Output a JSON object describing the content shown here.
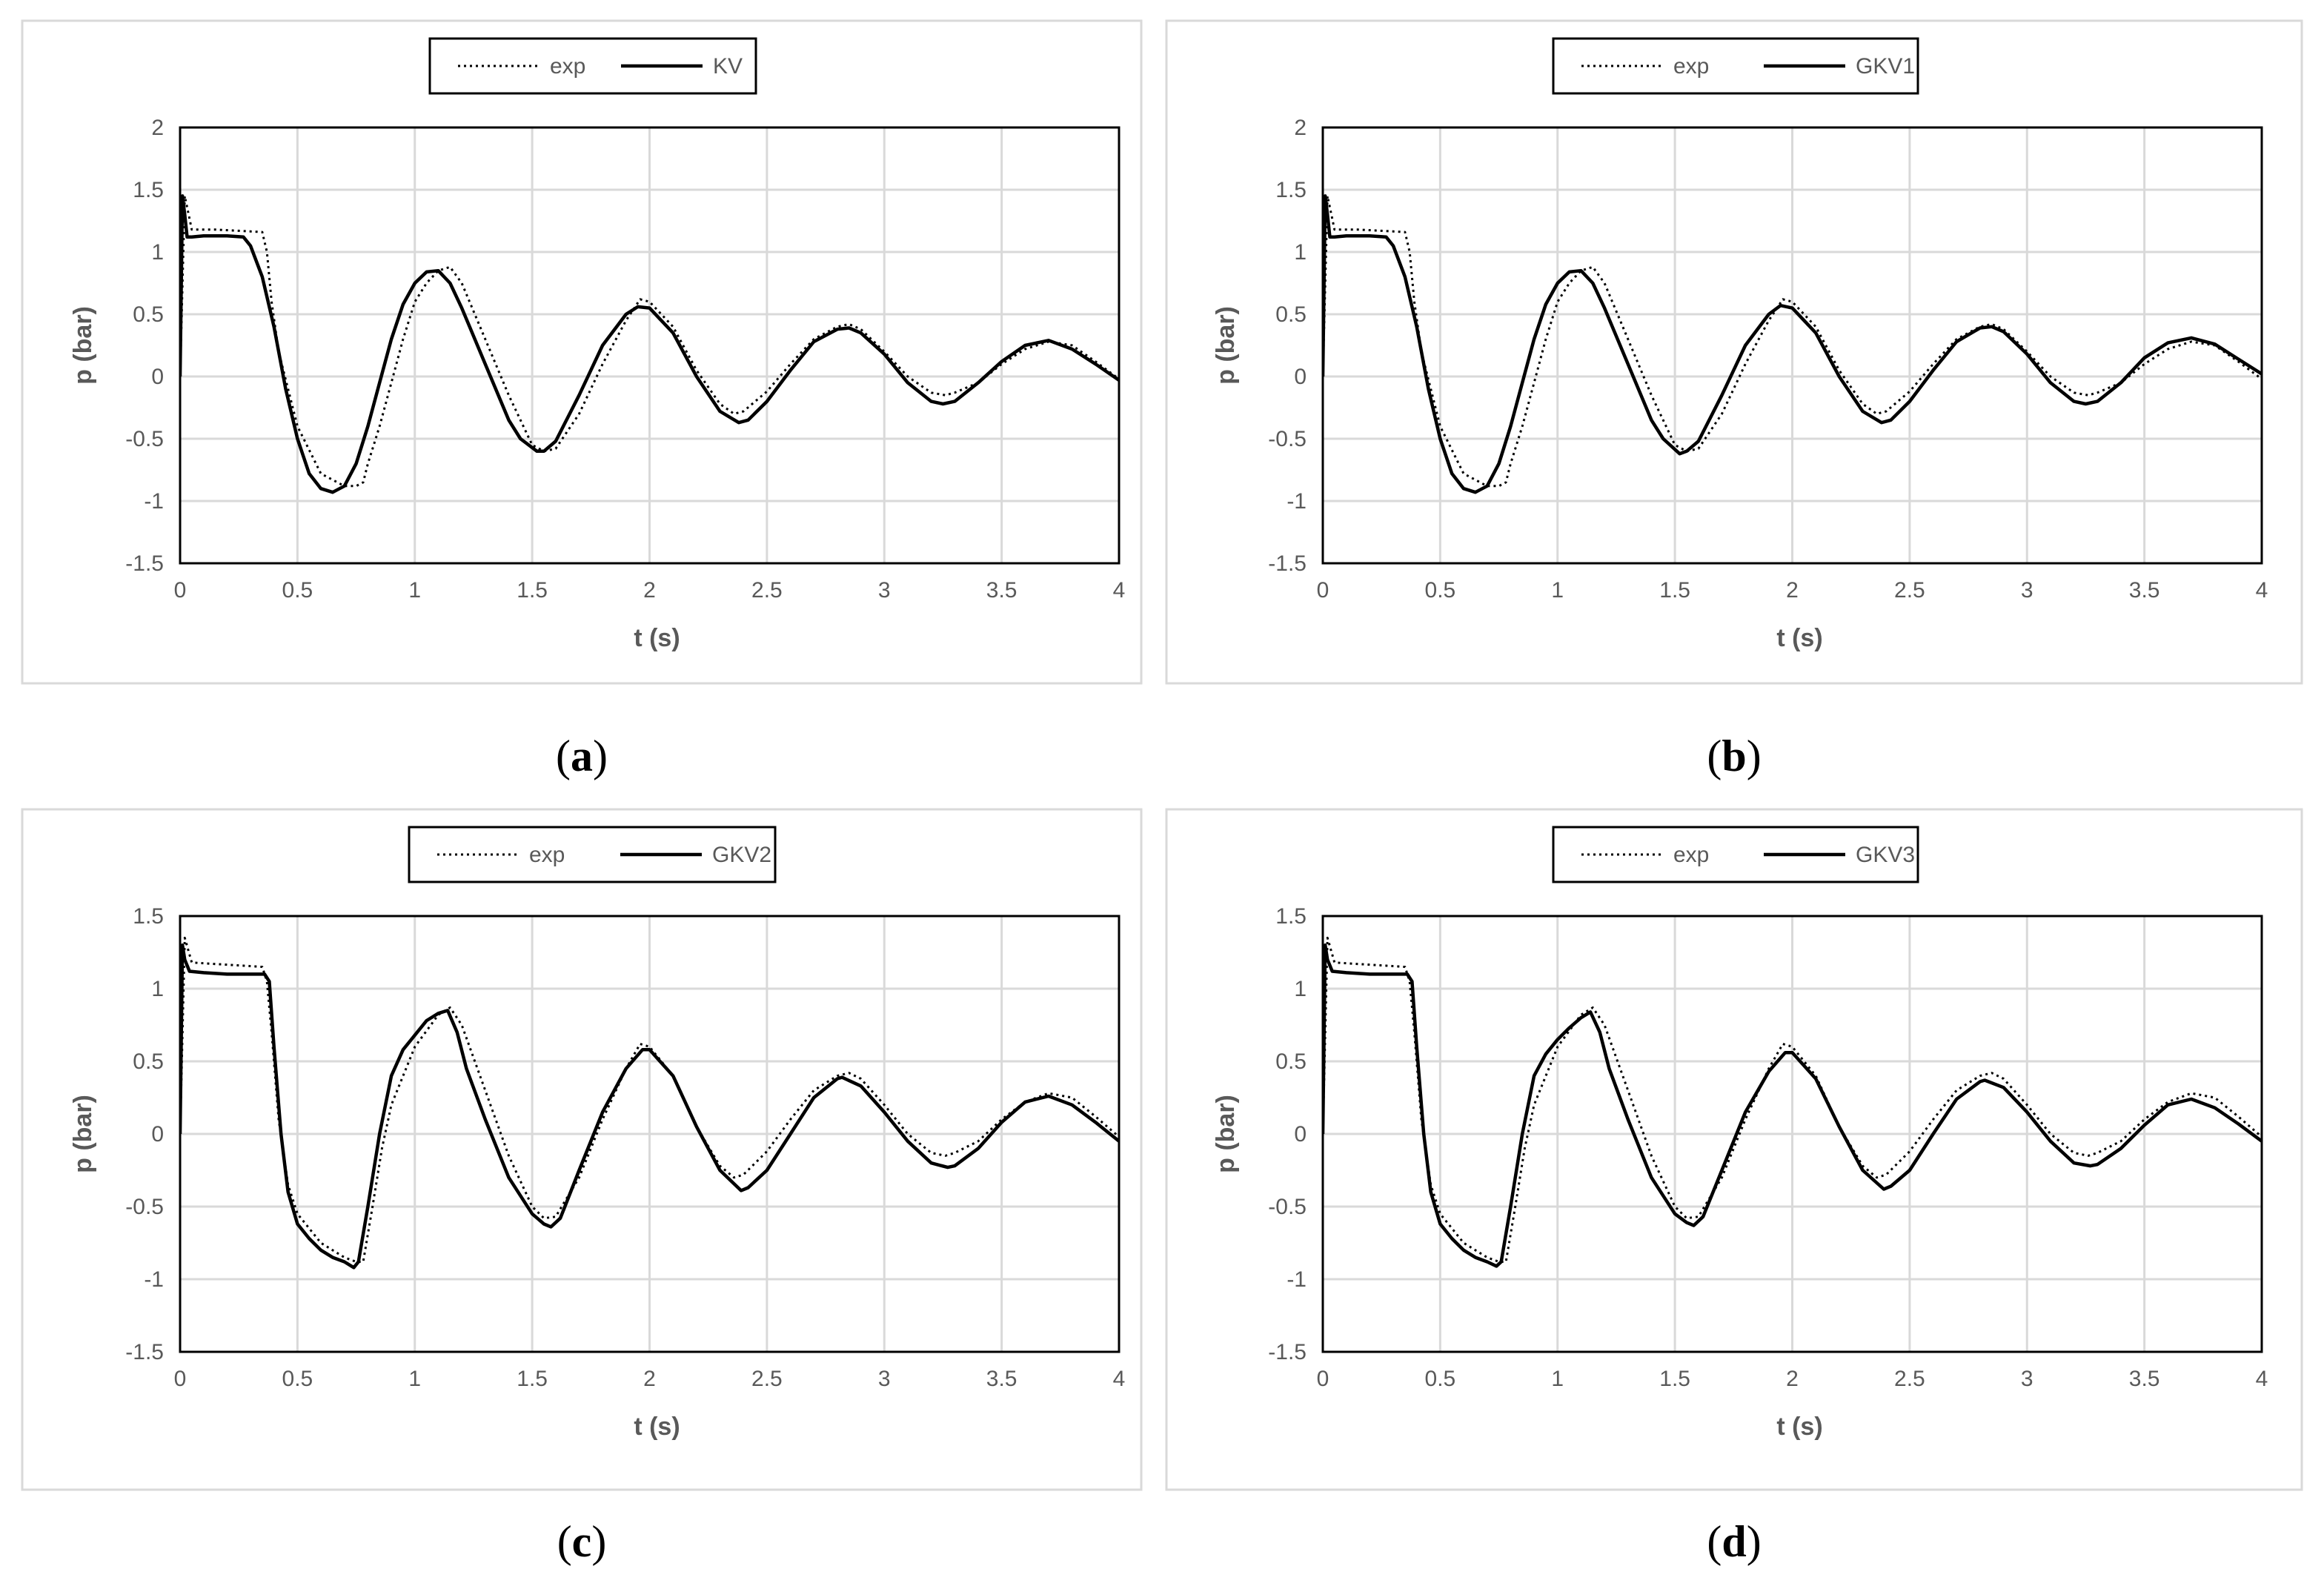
{
  "chart_data": [
    {
      "type": "line",
      "panel_label": "(a)",
      "xlabel": "t (s)",
      "ylabel": "p (bar)",
      "xlim": [
        0,
        4
      ],
      "ylim": [
        -1.5,
        2
      ],
      "x_ticks": [
        "0",
        "0.5",
        "1",
        "1.5",
        "2",
        "2.5",
        "3",
        "3.5",
        "4"
      ],
      "y_ticks": [
        "2",
        "1.5",
        "1",
        "0.5",
        "0",
        "-0.5",
        "-1",
        "-1.5"
      ],
      "grid": true,
      "legend": "top-center",
      "series": [
        {
          "name": "exp",
          "style": "dotted",
          "x": [
            0,
            0.02,
            0.05,
            0.15,
            0.25,
            0.35,
            0.37,
            0.39,
            0.42,
            0.5,
            0.6,
            0.7,
            0.75,
            0.78,
            0.8,
            0.85,
            0.9,
            0.95,
            1.0,
            1.05,
            1.1,
            1.15,
            1.2,
            1.3,
            1.4,
            1.5,
            1.55,
            1.6,
            1.7,
            1.8,
            1.9,
            1.96,
            2.0,
            2.1,
            2.2,
            2.3,
            2.36,
            2.4,
            2.5,
            2.6,
            2.7,
            2.8,
            2.85,
            2.9,
            3.0,
            3.1,
            3.2,
            3.26,
            3.3,
            3.4,
            3.5,
            3.6,
            3.7,
            3.8,
            3.9,
            4.0
          ],
          "y": [
            0,
            1.45,
            1.18,
            1.18,
            1.17,
            1.16,
            1.0,
            0.6,
            0.2,
            -0.4,
            -0.78,
            -0.88,
            -0.88,
            -0.85,
            -0.7,
            -0.4,
            -0.05,
            0.3,
            0.6,
            0.75,
            0.85,
            0.88,
            0.75,
            0.3,
            -0.15,
            -0.55,
            -0.6,
            -0.58,
            -0.3,
            0.1,
            0.45,
            0.62,
            0.6,
            0.4,
            0.05,
            -0.22,
            -0.3,
            -0.28,
            -0.12,
            0.1,
            0.3,
            0.4,
            0.42,
            0.38,
            0.2,
            0.0,
            -0.13,
            -0.15,
            -0.13,
            -0.05,
            0.1,
            0.22,
            0.28,
            0.25,
            0.12,
            -0.02
          ]
        },
        {
          "name": "KV",
          "style": "solid",
          "x": [
            0,
            0.01,
            0.02,
            0.03,
            0.05,
            0.1,
            0.2,
            0.27,
            0.3,
            0.35,
            0.4,
            0.45,
            0.5,
            0.55,
            0.6,
            0.65,
            0.7,
            0.75,
            0.8,
            0.85,
            0.9,
            0.95,
            1.0,
            1.05,
            1.1,
            1.15,
            1.2,
            1.3,
            1.4,
            1.45,
            1.52,
            1.55,
            1.6,
            1.7,
            1.8,
            1.9,
            1.95,
            2.0,
            2.1,
            2.2,
            2.3,
            2.38,
            2.42,
            2.5,
            2.6,
            2.7,
            2.8,
            2.85,
            2.9,
            3.0,
            3.1,
            3.2,
            3.25,
            3.3,
            3.4,
            3.5,
            3.6,
            3.7,
            3.8,
            3.9,
            4.0
          ],
          "y": [
            0,
            1.45,
            1.3,
            1.12,
            1.12,
            1.13,
            1.13,
            1.12,
            1.05,
            0.8,
            0.4,
            -0.1,
            -0.5,
            -0.78,
            -0.9,
            -0.93,
            -0.88,
            -0.7,
            -0.4,
            -0.05,
            0.3,
            0.58,
            0.75,
            0.84,
            0.85,
            0.75,
            0.55,
            0.1,
            -0.35,
            -0.5,
            -0.6,
            -0.6,
            -0.52,
            -0.15,
            0.25,
            0.5,
            0.56,
            0.55,
            0.35,
            0.0,
            -0.28,
            -0.37,
            -0.35,
            -0.2,
            0.05,
            0.28,
            0.38,
            0.39,
            0.35,
            0.18,
            -0.05,
            -0.2,
            -0.22,
            -0.2,
            -0.05,
            0.12,
            0.25,
            0.29,
            0.22,
            0.1,
            -0.03
          ]
        }
      ]
    },
    {
      "type": "line",
      "panel_label": "(b)",
      "xlabel": "t (s)",
      "ylabel": "p (bar)",
      "xlim": [
        0,
        4
      ],
      "ylim": [
        -1.5,
        2
      ],
      "x_ticks": [
        "0",
        "0.5",
        "1",
        "1.5",
        "2",
        "2.5",
        "3",
        "3.5",
        "4"
      ],
      "y_ticks": [
        "2",
        "1.5",
        "1",
        "0.5",
        "0",
        "-0.5",
        "-1",
        "-1.5"
      ],
      "grid": true,
      "legend": "top-center",
      "series": [
        {
          "name": "exp",
          "style": "dotted",
          "x": [
            0,
            0.02,
            0.05,
            0.15,
            0.25,
            0.35,
            0.37,
            0.39,
            0.42,
            0.5,
            0.6,
            0.7,
            0.75,
            0.78,
            0.8,
            0.85,
            0.9,
            0.95,
            1.0,
            1.05,
            1.1,
            1.15,
            1.2,
            1.3,
            1.4,
            1.5,
            1.55,
            1.6,
            1.7,
            1.8,
            1.9,
            1.96,
            2.0,
            2.1,
            2.2,
            2.3,
            2.36,
            2.4,
            2.5,
            2.6,
            2.7,
            2.8,
            2.85,
            2.9,
            3.0,
            3.1,
            3.2,
            3.26,
            3.3,
            3.4,
            3.5,
            3.6,
            3.7,
            3.8,
            3.9,
            4.0
          ],
          "y": [
            0,
            1.45,
            1.18,
            1.18,
            1.17,
            1.16,
            1.0,
            0.6,
            0.2,
            -0.4,
            -0.78,
            -0.88,
            -0.88,
            -0.85,
            -0.7,
            -0.4,
            -0.05,
            0.3,
            0.6,
            0.75,
            0.85,
            0.88,
            0.75,
            0.3,
            -0.15,
            -0.55,
            -0.6,
            -0.58,
            -0.3,
            0.1,
            0.45,
            0.62,
            0.6,
            0.4,
            0.05,
            -0.22,
            -0.3,
            -0.28,
            -0.12,
            0.1,
            0.3,
            0.4,
            0.42,
            0.38,
            0.2,
            0.0,
            -0.13,
            -0.15,
            -0.13,
            -0.05,
            0.1,
            0.22,
            0.28,
            0.25,
            0.12,
            -0.02
          ]
        },
        {
          "name": "GKV1",
          "style": "solid",
          "x": [
            0,
            0.01,
            0.02,
            0.03,
            0.05,
            0.1,
            0.2,
            0.27,
            0.3,
            0.35,
            0.4,
            0.45,
            0.5,
            0.55,
            0.6,
            0.65,
            0.7,
            0.75,
            0.8,
            0.85,
            0.9,
            0.95,
            1.0,
            1.05,
            1.1,
            1.15,
            1.2,
            1.3,
            1.4,
            1.45,
            1.52,
            1.55,
            1.6,
            1.7,
            1.8,
            1.9,
            1.95,
            2.0,
            2.1,
            2.2,
            2.3,
            2.38,
            2.42,
            2.5,
            2.6,
            2.7,
            2.8,
            2.85,
            2.9,
            3.0,
            3.1,
            3.2,
            3.25,
            3.3,
            3.4,
            3.5,
            3.6,
            3.7,
            3.8,
            3.9,
            4.0
          ],
          "y": [
            0,
            1.45,
            1.3,
            1.12,
            1.12,
            1.13,
            1.13,
            1.12,
            1.05,
            0.8,
            0.4,
            -0.1,
            -0.5,
            -0.78,
            -0.9,
            -0.93,
            -0.88,
            -0.7,
            -0.4,
            -0.05,
            0.3,
            0.58,
            0.75,
            0.84,
            0.85,
            0.75,
            0.55,
            0.1,
            -0.35,
            -0.5,
            -0.62,
            -0.6,
            -0.52,
            -0.15,
            0.25,
            0.5,
            0.57,
            0.55,
            0.35,
            0.0,
            -0.28,
            -0.37,
            -0.35,
            -0.2,
            0.05,
            0.28,
            0.39,
            0.4,
            0.36,
            0.18,
            -0.05,
            -0.2,
            -0.22,
            -0.2,
            -0.05,
            0.15,
            0.27,
            0.31,
            0.26,
            0.14,
            0.02
          ]
        }
      ]
    },
    {
      "type": "line",
      "panel_label": "(c)",
      "xlabel": "t (s)",
      "ylabel": "p (bar)",
      "xlim": [
        0,
        4
      ],
      "ylim": [
        -1.5,
        1.5
      ],
      "x_ticks": [
        "0",
        "0.5",
        "1",
        "1.5",
        "2",
        "2.5",
        "3",
        "3.5",
        "4"
      ],
      "y_ticks": [
        "1.5",
        "1",
        "0.5",
        "0",
        "-0.5",
        "-1",
        "-1.5"
      ],
      "grid": true,
      "legend": "top-center",
      "series": [
        {
          "name": "exp",
          "style": "dotted",
          "x": [
            0,
            0.02,
            0.05,
            0.15,
            0.25,
            0.35,
            0.37,
            0.39,
            0.42,
            0.46,
            0.5,
            0.6,
            0.7,
            0.75,
            0.78,
            0.82,
            0.86,
            0.9,
            1.0,
            1.1,
            1.15,
            1.2,
            1.3,
            1.4,
            1.5,
            1.55,
            1.6,
            1.7,
            1.8,
            1.9,
            1.96,
            2.0,
            2.1,
            2.2,
            2.3,
            2.36,
            2.4,
            2.5,
            2.6,
            2.7,
            2.8,
            2.85,
            2.9,
            3.0,
            3.1,
            3.2,
            3.26,
            3.3,
            3.4,
            3.5,
            3.6,
            3.7,
            3.8,
            3.9,
            4.0
          ],
          "y": [
            0,
            1.35,
            1.18,
            1.17,
            1.16,
            1.15,
            1.05,
            0.7,
            0.1,
            -0.35,
            -0.55,
            -0.75,
            -0.85,
            -0.88,
            -0.88,
            -0.5,
            -0.1,
            0.2,
            0.6,
            0.82,
            0.87,
            0.75,
            0.3,
            -0.15,
            -0.5,
            -0.58,
            -0.57,
            -0.3,
            0.1,
            0.45,
            0.62,
            0.6,
            0.4,
            0.05,
            -0.22,
            -0.3,
            -0.28,
            -0.12,
            0.1,
            0.3,
            0.4,
            0.42,
            0.38,
            0.2,
            0.0,
            -0.13,
            -0.15,
            -0.13,
            -0.05,
            0.1,
            0.22,
            0.28,
            0.25,
            0.12,
            -0.02
          ]
        },
        {
          "name": "GKV2",
          "style": "solid",
          "x": [
            0,
            0.01,
            0.02,
            0.04,
            0.1,
            0.2,
            0.3,
            0.36,
            0.38,
            0.4,
            0.43,
            0.46,
            0.5,
            0.55,
            0.6,
            0.65,
            0.7,
            0.74,
            0.76,
            0.8,
            0.85,
            0.9,
            0.95,
            1.0,
            1.05,
            1.1,
            1.14,
            1.18,
            1.22,
            1.3,
            1.4,
            1.5,
            1.55,
            1.58,
            1.62,
            1.7,
            1.8,
            1.9,
            1.97,
            2.0,
            2.1,
            2.2,
            2.3,
            2.39,
            2.42,
            2.5,
            2.6,
            2.7,
            2.8,
            2.82,
            2.9,
            3.0,
            3.1,
            3.2,
            3.27,
            3.3,
            3.4,
            3.5,
            3.6,
            3.7,
            3.8,
            3.9,
            4.0
          ],
          "y": [
            0,
            1.3,
            1.2,
            1.12,
            1.11,
            1.1,
            1.1,
            1.1,
            1.05,
            0.6,
            0.0,
            -0.4,
            -0.62,
            -0.72,
            -0.8,
            -0.85,
            -0.88,
            -0.92,
            -0.88,
            -0.5,
            0.0,
            0.4,
            0.58,
            0.68,
            0.78,
            0.83,
            0.85,
            0.7,
            0.45,
            0.1,
            -0.3,
            -0.55,
            -0.62,
            -0.64,
            -0.58,
            -0.25,
            0.15,
            0.45,
            0.58,
            0.58,
            0.4,
            0.05,
            -0.25,
            -0.39,
            -0.37,
            -0.25,
            0.0,
            0.25,
            0.38,
            0.39,
            0.33,
            0.15,
            -0.05,
            -0.2,
            -0.23,
            -0.22,
            -0.1,
            0.08,
            0.22,
            0.26,
            0.2,
            0.08,
            -0.05
          ]
        }
      ]
    },
    {
      "type": "line",
      "panel_label": "(d)",
      "xlabel": "t (s)",
      "ylabel": "p (bar)",
      "xlim": [
        0,
        4
      ],
      "ylim": [
        -1.5,
        1.5
      ],
      "x_ticks": [
        "0",
        "0.5",
        "1",
        "1.5",
        "2",
        "2.5",
        "3",
        "3.5",
        "4"
      ],
      "y_ticks": [
        "1.5",
        "1",
        "0.5",
        "0",
        "-0.5",
        "-1",
        "-1.5"
      ],
      "grid": true,
      "legend": "top-center",
      "series": [
        {
          "name": "exp",
          "style": "dotted",
          "x": [
            0,
            0.02,
            0.05,
            0.15,
            0.25,
            0.35,
            0.37,
            0.39,
            0.42,
            0.46,
            0.5,
            0.6,
            0.7,
            0.75,
            0.78,
            0.82,
            0.86,
            0.9,
            1.0,
            1.1,
            1.15,
            1.2,
            1.3,
            1.4,
            1.5,
            1.55,
            1.6,
            1.7,
            1.8,
            1.9,
            1.96,
            2.0,
            2.1,
            2.2,
            2.3,
            2.36,
            2.4,
            2.5,
            2.6,
            2.7,
            2.8,
            2.85,
            2.9,
            3.0,
            3.1,
            3.2,
            3.26,
            3.3,
            3.4,
            3.5,
            3.6,
            3.7,
            3.8,
            3.9,
            4.0
          ],
          "y": [
            0,
            1.35,
            1.18,
            1.17,
            1.16,
            1.15,
            1.05,
            0.7,
            0.1,
            -0.35,
            -0.55,
            -0.75,
            -0.85,
            -0.88,
            -0.88,
            -0.5,
            -0.1,
            0.2,
            0.6,
            0.82,
            0.87,
            0.75,
            0.3,
            -0.15,
            -0.5,
            -0.58,
            -0.57,
            -0.3,
            0.1,
            0.45,
            0.62,
            0.6,
            0.4,
            0.05,
            -0.22,
            -0.3,
            -0.28,
            -0.12,
            0.1,
            0.3,
            0.4,
            0.42,
            0.38,
            0.2,
            0.0,
            -0.13,
            -0.15,
            -0.13,
            -0.05,
            0.1,
            0.22,
            0.28,
            0.25,
            0.12,
            -0.02
          ]
        },
        {
          "name": "GKV3",
          "style": "solid",
          "x": [
            0,
            0.01,
            0.02,
            0.04,
            0.1,
            0.2,
            0.3,
            0.36,
            0.38,
            0.4,
            0.43,
            0.46,
            0.5,
            0.55,
            0.6,
            0.65,
            0.7,
            0.74,
            0.76,
            0.8,
            0.85,
            0.9,
            0.95,
            1.0,
            1.05,
            1.1,
            1.14,
            1.18,
            1.22,
            1.3,
            1.4,
            1.5,
            1.55,
            1.58,
            1.62,
            1.7,
            1.8,
            1.9,
            1.97,
            2.0,
            2.1,
            2.2,
            2.3,
            2.39,
            2.42,
            2.5,
            2.6,
            2.7,
            2.8,
            2.82,
            2.9,
            3.0,
            3.1,
            3.2,
            3.27,
            3.3,
            3.4,
            3.5,
            3.6,
            3.7,
            3.8,
            3.9,
            4.0
          ],
          "y": [
            0,
            1.3,
            1.2,
            1.12,
            1.11,
            1.1,
            1.1,
            1.1,
            1.05,
            0.6,
            0.0,
            -0.4,
            -0.62,
            -0.72,
            -0.8,
            -0.85,
            -0.88,
            -0.91,
            -0.88,
            -0.5,
            0.0,
            0.4,
            0.55,
            0.65,
            0.73,
            0.8,
            0.84,
            0.7,
            0.45,
            0.1,
            -0.3,
            -0.55,
            -0.61,
            -0.63,
            -0.57,
            -0.25,
            0.15,
            0.43,
            0.56,
            0.56,
            0.38,
            0.05,
            -0.25,
            -0.38,
            -0.36,
            -0.25,
            0.0,
            0.24,
            0.36,
            0.37,
            0.32,
            0.15,
            -0.05,
            -0.2,
            -0.22,
            -0.21,
            -0.1,
            0.06,
            0.2,
            0.24,
            0.18,
            0.07,
            -0.05
          ]
        }
      ]
    }
  ]
}
